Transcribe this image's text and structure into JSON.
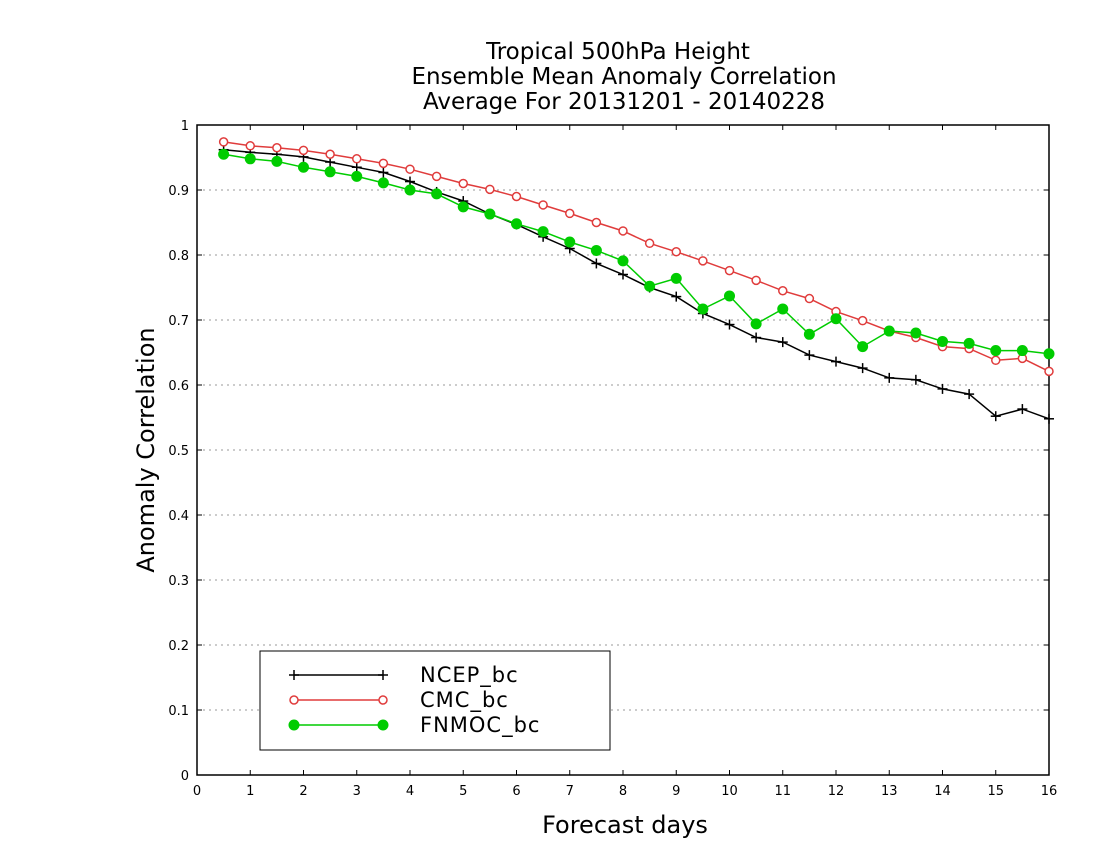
{
  "chart_data": {
    "type": "line",
    "title": [
      "Tropical 500hPa Height",
      "Ensemble Mean Anomaly Correlation",
      "Average For 20131201 - 20140228"
    ],
    "xlabel": "Forecast days",
    "ylabel": "Anomaly Correlation",
    "xlim": [
      0,
      16
    ],
    "ylim": [
      0,
      1
    ],
    "xticks": [
      "0",
      "1",
      "2",
      "3",
      "4",
      "5",
      "6",
      "7",
      "8",
      "9",
      "10",
      "11",
      "12",
      "13",
      "14",
      "15",
      "16"
    ],
    "yticks": [
      "0",
      "0.1",
      "0.2",
      "0.3",
      "0.4",
      "0.5",
      "0.6",
      "0.7",
      "0.8",
      "0.9",
      "1"
    ],
    "grid": "horizontal dotted",
    "legend_position": "bottom-left",
    "x": [
      0.5,
      1,
      1.5,
      2,
      2.5,
      3,
      3.5,
      4,
      4.5,
      5,
      5.5,
      6,
      6.5,
      7,
      7.5,
      8,
      8.5,
      9,
      9.5,
      10,
      10.5,
      11,
      11.5,
      12,
      12.5,
      13,
      13.5,
      14,
      14.5,
      15,
      15.5,
      16
    ],
    "series": [
      {
        "name": "NCEP_bc",
        "color": "#000000",
        "marker": "plus",
        "values": [
          0.962,
          0.958,
          0.955,
          0.951,
          0.943,
          0.935,
          0.927,
          0.913,
          0.897,
          0.883,
          0.863,
          0.847,
          0.828,
          0.81,
          0.787,
          0.77,
          0.75,
          0.736,
          0.71,
          0.693,
          0.673,
          0.666,
          0.646,
          0.636,
          0.626,
          0.611,
          0.608,
          0.594,
          0.586,
          0.552,
          0.563,
          0.548
        ]
      },
      {
        "name": "CMC_bc",
        "color": "#e03c3c",
        "marker": "open-circle",
        "values": [
          0.974,
          0.968,
          0.965,
          0.961,
          0.955,
          0.948,
          0.941,
          0.932,
          0.921,
          0.91,
          0.901,
          0.89,
          0.877,
          0.864,
          0.85,
          0.837,
          0.818,
          0.805,
          0.791,
          0.776,
          0.761,
          0.745,
          0.733,
          0.713,
          0.699,
          0.683,
          0.673,
          0.659,
          0.656,
          0.638,
          0.641,
          0.621
        ]
      },
      {
        "name": "FNMOC_bc",
        "color": "#00cc00",
        "marker": "filled-circle",
        "values": [
          0.955,
          0.948,
          0.944,
          0.935,
          0.928,
          0.921,
          0.911,
          0.9,
          0.894,
          0.874,
          0.863,
          0.848,
          0.836,
          0.82,
          0.807,
          0.791,
          0.752,
          0.764,
          0.717,
          0.737,
          0.694,
          0.717,
          0.678,
          0.702,
          0.659,
          0.683,
          0.68,
          0.667,
          0.664,
          0.653,
          0.653,
          0.648
        ]
      }
    ]
  }
}
